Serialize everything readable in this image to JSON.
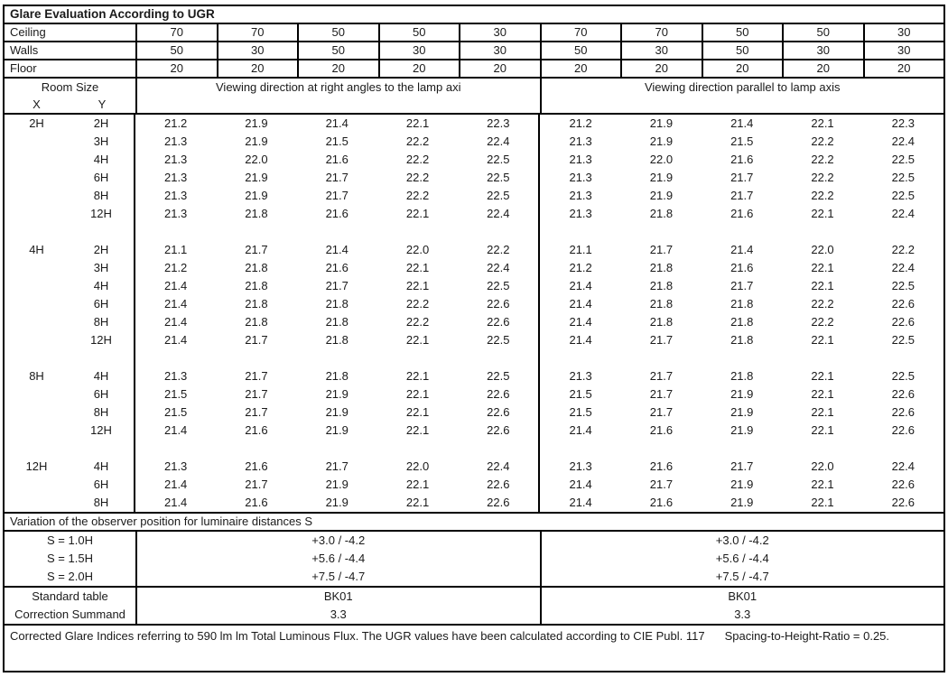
{
  "title": "Glare Evaluation According to UGR",
  "colors": {
    "border": "#000000",
    "text": "#1a1a1a",
    "background": "#ffffff"
  },
  "surface_rows": [
    {
      "label": "Ceiling",
      "values": [
        "70",
        "70",
        "50",
        "50",
        "30",
        "70",
        "70",
        "50",
        "50",
        "30"
      ]
    },
    {
      "label": "Walls",
      "values": [
        "50",
        "30",
        "50",
        "30",
        "30",
        "50",
        "30",
        "50",
        "30",
        "30"
      ]
    },
    {
      "label": "Floor",
      "values": [
        "20",
        "20",
        "20",
        "20",
        "20",
        "20",
        "20",
        "20",
        "20",
        "20"
      ]
    }
  ],
  "header": {
    "room_size": "Room Size",
    "x": "X",
    "y": "Y",
    "left_direction": "Viewing direction at right angles to the lamp axi",
    "right_direction": "Viewing direction parallel to lamp axis"
  },
  "ugr_rows": [
    {
      "x": "2H",
      "y": "2H",
      "v": [
        "21.2",
        "21.9",
        "21.4",
        "22.1",
        "22.3",
        "21.2",
        "21.9",
        "21.4",
        "22.1",
        "22.3"
      ]
    },
    {
      "x": "",
      "y": "3H",
      "v": [
        "21.3",
        "21.9",
        "21.5",
        "22.2",
        "22.4",
        "21.3",
        "21.9",
        "21.5",
        "22.2",
        "22.4"
      ]
    },
    {
      "x": "",
      "y": "4H",
      "v": [
        "21.3",
        "22.0",
        "21.6",
        "22.2",
        "22.5",
        "21.3",
        "22.0",
        "21.6",
        "22.2",
        "22.5"
      ]
    },
    {
      "x": "",
      "y": "6H",
      "v": [
        "21.3",
        "21.9",
        "21.7",
        "22.2",
        "22.5",
        "21.3",
        "21.9",
        "21.7",
        "22.2",
        "22.5"
      ]
    },
    {
      "x": "",
      "y": "8H",
      "v": [
        "21.3",
        "21.9",
        "21.7",
        "22.2",
        "22.5",
        "21.3",
        "21.9",
        "21.7",
        "22.2",
        "22.5"
      ]
    },
    {
      "x": "",
      "y": "12H",
      "v": [
        "21.3",
        "21.8",
        "21.6",
        "22.1",
        "22.4",
        "21.3",
        "21.8",
        "21.6",
        "22.1",
        "22.4"
      ]
    },
    {
      "x": "",
      "y": "",
      "v": [
        "",
        "",
        "",
        "",
        "",
        "",
        "",
        "",
        "",
        ""
      ]
    },
    {
      "x": "4H",
      "y": "2H",
      "v": [
        "21.1",
        "21.7",
        "21.4",
        "22.0",
        "22.2",
        "21.1",
        "21.7",
        "21.4",
        "22.0",
        "22.2"
      ]
    },
    {
      "x": "",
      "y": "3H",
      "v": [
        "21.2",
        "21.8",
        "21.6",
        "22.1",
        "22.4",
        "21.2",
        "21.8",
        "21.6",
        "22.1",
        "22.4"
      ]
    },
    {
      "x": "",
      "y": "4H",
      "v": [
        "21.4",
        "21.8",
        "21.7",
        "22.1",
        "22.5",
        "21.4",
        "21.8",
        "21.7",
        "22.1",
        "22.5"
      ]
    },
    {
      "x": "",
      "y": "6H",
      "v": [
        "21.4",
        "21.8",
        "21.8",
        "22.2",
        "22.6",
        "21.4",
        "21.8",
        "21.8",
        "22.2",
        "22.6"
      ]
    },
    {
      "x": "",
      "y": "8H",
      "v": [
        "21.4",
        "21.8",
        "21.8",
        "22.2",
        "22.6",
        "21.4",
        "21.8",
        "21.8",
        "22.2",
        "22.6"
      ]
    },
    {
      "x": "",
      "y": "12H",
      "v": [
        "21.4",
        "21.7",
        "21.8",
        "22.1",
        "22.5",
        "21.4",
        "21.7",
        "21.8",
        "22.1",
        "22.5"
      ]
    },
    {
      "x": "",
      "y": "",
      "v": [
        "",
        "",
        "",
        "",
        "",
        "",
        "",
        "",
        "",
        ""
      ]
    },
    {
      "x": "8H",
      "y": "4H",
      "v": [
        "21.3",
        "21.7",
        "21.8",
        "22.1",
        "22.5",
        "21.3",
        "21.7",
        "21.8",
        "22.1",
        "22.5"
      ]
    },
    {
      "x": "",
      "y": "6H",
      "v": [
        "21.5",
        "21.7",
        "21.9",
        "22.1",
        "22.6",
        "21.5",
        "21.7",
        "21.9",
        "22.1",
        "22.6"
      ]
    },
    {
      "x": "",
      "y": "8H",
      "v": [
        "21.5",
        "21.7",
        "21.9",
        "22.1",
        "22.6",
        "21.5",
        "21.7",
        "21.9",
        "22.1",
        "22.6"
      ]
    },
    {
      "x": "",
      "y": "12H",
      "v": [
        "21.4",
        "21.6",
        "21.9",
        "22.1",
        "22.6",
        "21.4",
        "21.6",
        "21.9",
        "22.1",
        "22.6"
      ]
    },
    {
      "x": "",
      "y": "",
      "v": [
        "",
        "",
        "",
        "",
        "",
        "",
        "",
        "",
        "",
        ""
      ]
    },
    {
      "x": "12H",
      "y": "4H",
      "v": [
        "21.3",
        "21.6",
        "21.7",
        "22.0",
        "22.4",
        "21.3",
        "21.6",
        "21.7",
        "22.0",
        "22.4"
      ]
    },
    {
      "x": "",
      "y": "6H",
      "v": [
        "21.4",
        "21.7",
        "21.9",
        "22.1",
        "22.6",
        "21.4",
        "21.7",
        "21.9",
        "22.1",
        "22.6"
      ]
    },
    {
      "x": "",
      "y": "8H",
      "v": [
        "21.4",
        "21.6",
        "21.9",
        "22.1",
        "22.6",
        "21.4",
        "21.6",
        "21.9",
        "22.1",
        "22.6"
      ]
    }
  ],
  "variation": {
    "title": "Variation of the observer position for luminaire distances S",
    "rows": [
      {
        "label": "S = 1.0H",
        "left": "+3.0 / -4.2",
        "right": "+3.0 / -4.2"
      },
      {
        "label": "S = 1.5H",
        "left": "+5.6 / -4.4",
        "right": "+5.6 / -4.4"
      },
      {
        "label": "S = 2.0H",
        "left": "+7.5 / -4.7",
        "right": "+7.5 / -4.7"
      }
    ]
  },
  "summary_rows": [
    {
      "label": "Standard table",
      "left": "BK01",
      "right": "BK01"
    },
    {
      "label": "Correction Summand",
      "left": "3.3",
      "right": "3.3"
    }
  ],
  "footer": {
    "text1": "Corrected Glare Indices referring to 590 lm lm Total Luminous Flux. The UGR values have been calculated according to CIE Publ. 117",
    "text2": "Spacing-to-Height-Ratio = 0.25."
  }
}
